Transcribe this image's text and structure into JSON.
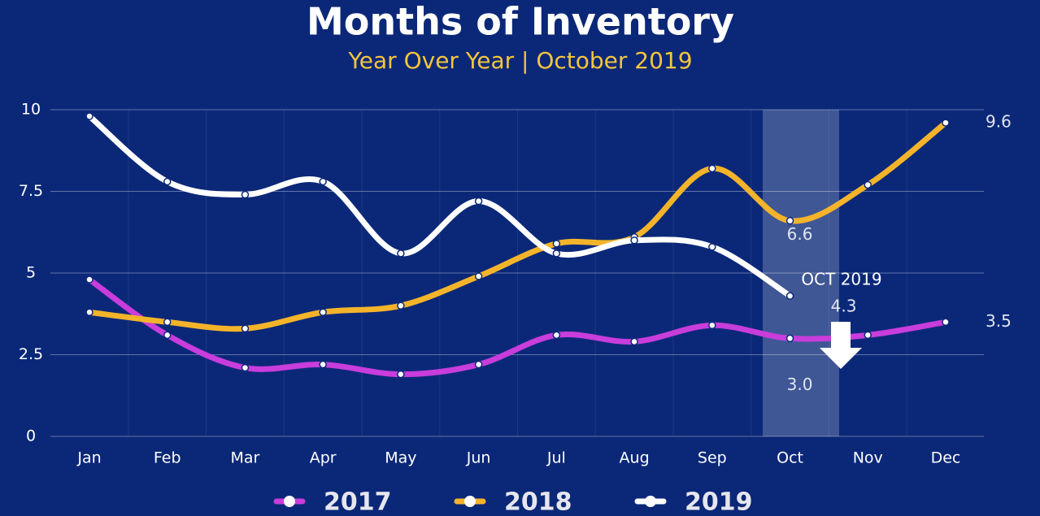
{
  "chart_data": {
    "type": "line",
    "title": "Months of Inventory",
    "subtitle": "Year Over Year | October 2019",
    "annotations": [
      "OCT 2019"
    ],
    "categories": [
      "Jan",
      "Feb",
      "Mar",
      "Apr",
      "May",
      "Jun",
      "Jul",
      "Aug",
      "Sep",
      "Oct",
      "Nov",
      "Dec"
    ],
    "series": [
      {
        "name": "2017",
        "color": "#c83ddb",
        "values": [
          4.8,
          3.1,
          2.1,
          2.2,
          1.9,
          2.2,
          3.1,
          2.9,
          3.4,
          3.0,
          3.1,
          3.5
        ],
        "value_labels": [
          null,
          null,
          null,
          null,
          null,
          null,
          null,
          null,
          null,
          "3.0",
          null,
          "3.5"
        ]
      },
      {
        "name": "2018",
        "color": "#f4b42a",
        "values": [
          3.8,
          3.5,
          3.3,
          3.8,
          4.0,
          4.9,
          5.9,
          6.1,
          8.2,
          6.6,
          7.7,
          9.6
        ],
        "value_labels": [
          null,
          null,
          null,
          null,
          null,
          null,
          null,
          null,
          null,
          "6.6",
          null,
          "9.6"
        ]
      },
      {
        "name": "2019",
        "color": "#ffffff",
        "values": [
          9.8,
          7.8,
          7.4,
          7.8,
          5.6,
          7.2,
          5.6,
          6.0,
          5.8,
          4.3,
          null,
          null
        ],
        "value_labels": [
          null,
          null,
          null,
          null,
          null,
          null,
          null,
          null,
          null,
          "4.3",
          null,
          null
        ]
      }
    ],
    "ylim": [
      0,
      10
    ],
    "yticks": [
      0,
      2.5,
      5,
      7.5,
      10
    ],
    "grid": true
  }
}
